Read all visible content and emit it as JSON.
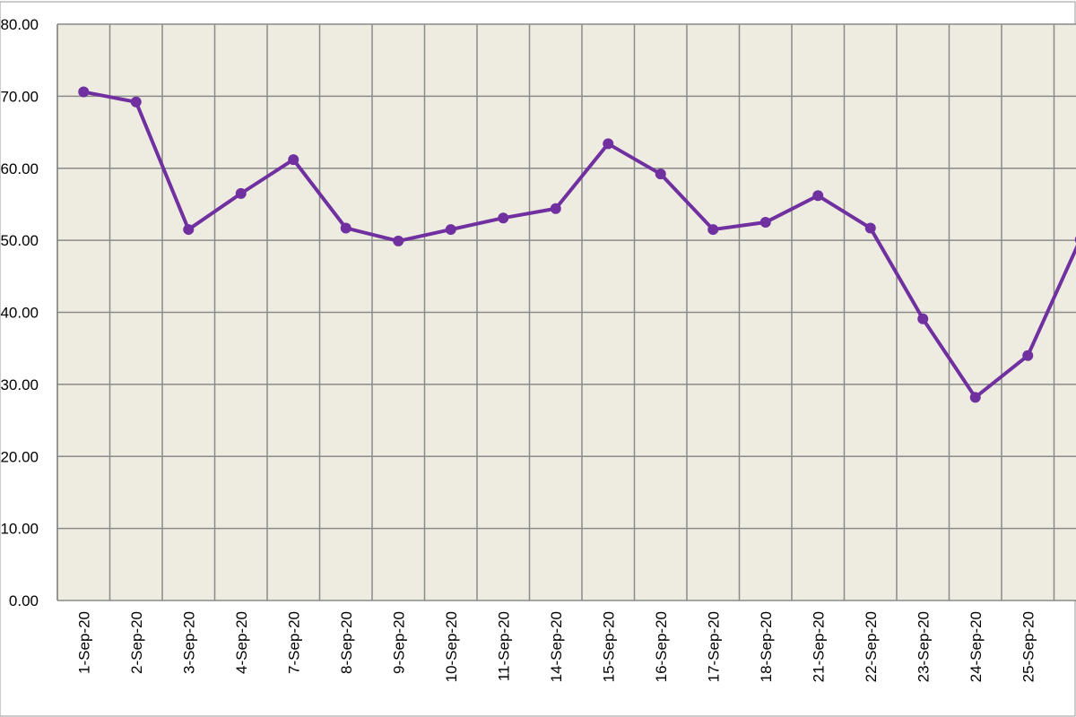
{
  "chart_data": {
    "type": "line",
    "categories": [
      "1-Sep-20",
      "2-Sep-20",
      "3-Sep-20",
      "4-Sep-20",
      "7-Sep-20",
      "8-Sep-20",
      "9-Sep-20",
      "10-Sep-20",
      "11-Sep-20",
      "14-Sep-20",
      "15-Sep-20",
      "16-Sep-20",
      "17-Sep-20",
      "18-Sep-20",
      "21-Sep-20",
      "22-Sep-20",
      "23-Sep-20",
      "24-Sep-20",
      "25-Sep-20",
      null
    ],
    "series": [
      {
        "color": "#7030a0",
        "values": [
          70.6,
          69.2,
          51.5,
          56.5,
          61.2,
          51.7,
          49.9,
          51.5,
          53.1,
          54.4,
          63.4,
          59.2,
          51.5,
          52.5,
          56.2,
          51.7,
          39.1,
          28.2,
          34.0,
          50.1
        ]
      }
    ],
    "ylim": [
      0,
      80
    ],
    "yticks": [
      {
        "value": 0,
        "label": "0.00"
      },
      {
        "value": 10,
        "label": "10.00"
      },
      {
        "value": 20,
        "label": "20.00"
      },
      {
        "value": 30,
        "label": "30.00"
      },
      {
        "value": 40,
        "label": "40.00"
      },
      {
        "value": 50,
        "label": "50.00"
      },
      {
        "value": 60,
        "label": "60.00"
      },
      {
        "value": 70,
        "label": "70.00"
      },
      {
        "value": 80,
        "label": "80.00"
      }
    ],
    "grid": true
  }
}
